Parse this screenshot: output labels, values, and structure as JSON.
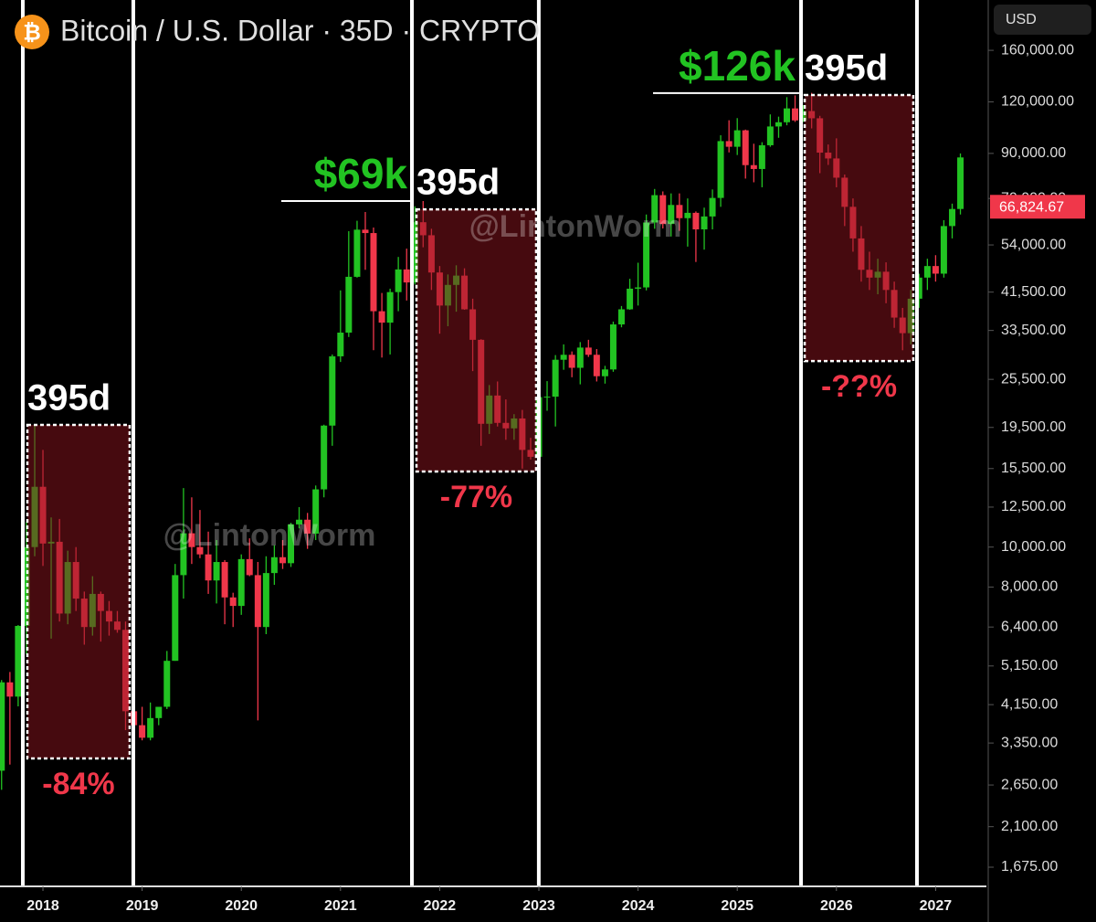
{
  "chart_data": {
    "type": "candlestick",
    "symbol_icon": "₿",
    "title": "Bitcoin / U.S. Dollar · 35D · CRYPTO",
    "currency": "USD",
    "log_scale": true,
    "grid": false,
    "up_color": "#22c322",
    "down_color": "#f0374a",
    "xlim": [
      2017.567,
      2027.512
    ],
    "xticks": [
      2018,
      2019,
      2020,
      2021,
      2022,
      2023,
      2024,
      2025,
      2026,
      2027
    ],
    "ylim": [
      1505,
      211900
    ],
    "yticks": [
      {
        "value": 160000,
        "label": "160,000.00"
      },
      {
        "value": 120000,
        "label": "120,000.00"
      },
      {
        "value": 90000,
        "label": "90,000.00"
      },
      {
        "value": 70000,
        "label": "70,000.00"
      },
      {
        "value": 54000,
        "label": "54,000.00"
      },
      {
        "value": 41500,
        "label": "41,500.00"
      },
      {
        "value": 33500,
        "label": "33,500.00"
      },
      {
        "value": 25500,
        "label": "25,500.00"
      },
      {
        "value": 19500,
        "label": "19,500.00"
      },
      {
        "value": 15500,
        "label": "15,500.00"
      },
      {
        "value": 12500,
        "label": "12,500.00"
      },
      {
        "value": 10000,
        "label": "10,000.00"
      },
      {
        "value": 8000,
        "label": "8,000.00"
      },
      {
        "value": 6400,
        "label": "6,400.00"
      },
      {
        "value": 5150,
        "label": "5,150.00"
      },
      {
        "value": 4150,
        "label": "4,150.00"
      },
      {
        "value": 3350,
        "label": "3,350.00"
      },
      {
        "value": 2650,
        "label": "2,650.00"
      },
      {
        "value": 2100,
        "label": "2,100.00"
      },
      {
        "value": 1675,
        "label": "1,675.00"
      }
    ],
    "last_price": {
      "value": 66824.67,
      "label": "66,824.67"
    },
    "x": [
      2017.583,
      2017.667,
      2017.75,
      2017.833,
      2017.917,
      2018,
      2018.083,
      2018.167,
      2018.25,
      2018.333,
      2018.417,
      2018.5,
      2018.583,
      2018.667,
      2018.75,
      2018.833,
      2018.917,
      2019,
      2019.083,
      2019.167,
      2019.25,
      2019.333,
      2019.417,
      2019.5,
      2019.583,
      2019.667,
      2019.75,
      2019.833,
      2019.917,
      2020,
      2020.083,
      2020.167,
      2020.25,
      2020.333,
      2020.417,
      2020.5,
      2020.583,
      2020.667,
      2020.75,
      2020.833,
      2020.917,
      2021,
      2021.083,
      2021.167,
      2021.25,
      2021.333,
      2021.417,
      2021.5,
      2021.583,
      2021.667,
      2021.75,
      2021.833,
      2021.917,
      2022,
      2022.083,
      2022.167,
      2022.25,
      2022.333,
      2022.417,
      2022.5,
      2022.583,
      2022.667,
      2022.75,
      2022.833,
      2022.917,
      2023,
      2023.083,
      2023.167,
      2023.25,
      2023.333,
      2023.417,
      2023.5,
      2023.583,
      2023.667,
      2023.75,
      2023.833,
      2023.917,
      2024,
      2024.083,
      2024.167,
      2024.25,
      2024.333,
      2024.417,
      2024.5,
      2024.583,
      2024.667,
      2024.75,
      2024.833,
      2024.917,
      2025,
      2025.083,
      2025.167,
      2025.25,
      2025.333,
      2025.417,
      2025.5,
      2025.583,
      2025.667,
      2025.75,
      2025.833,
      2025.917,
      2026,
      2026.083,
      2026.167,
      2026.25,
      2026.333,
      2026.417,
      2026.5,
      2026.583,
      2026.667,
      2026.75,
      2026.833,
      2026.917,
      2027,
      2027.083,
      2027.167,
      2027.25
    ],
    "open": [
      2870,
      4700,
      4340,
      6440,
      10000,
      14000,
      10200,
      10300,
      6900,
      9200,
      7500,
      6400,
      7700,
      7000,
      6600,
      6300,
      4000,
      3700,
      3450,
      3850,
      4100,
      5300,
      8550,
      10800,
      10000,
      9600,
      8300,
      9200,
      7550,
      7200,
      9350,
      8550,
      6400,
      8650,
      9450,
      9140,
      11350,
      11650,
      10780,
      13800,
      19700,
      29000,
      33100,
      45200,
      58800,
      57700,
      37300,
      35000,
      41500,
      47100,
      43800,
      61300,
      57000,
      46300,
      38500,
      43200,
      45500,
      37700,
      31800,
      19900,
      23300,
      20000,
      19400,
      20500,
      17200,
      16550,
      23100,
      23150,
      28450,
      29250,
      27200,
      30450,
      29250,
      25950,
      26950,
      34650,
      37700,
      42300,
      42600,
      61200,
      71300,
      60700,
      67500,
      62700,
      64600,
      58900,
      63300,
      70200,
      96400,
      93400,
      102400,
      84300,
      82500,
      94200,
      104600,
      107100,
      115700,
      108200,
      114000,
      109500,
      90400,
      87500,
      78600,
      66800,
      56000,
      47000,
      45000,
      46500,
      42000,
      36000,
      33000,
      40000,
      45000,
      48000,
      46000,
      60000,
      66000
    ],
    "high": [
      4760,
      4980,
      6470,
      11500,
      19700,
      17200,
      11800,
      11700,
      9800,
      10000,
      7800,
      8500,
      7800,
      7400,
      7000,
      6600,
      4300,
      4100,
      4200,
      4100,
      5600,
      9100,
      13900,
      13200,
      12300,
      10900,
      10400,
      9300,
      7750,
      9600,
      10500,
      9200,
      9500,
      10100,
      10400,
      11450,
      12500,
      12100,
      14100,
      19800,
      29300,
      41900,
      58300,
      61800,
      64900,
      59500,
      41300,
      42300,
      50500,
      52900,
      67000,
      69000,
      59100,
      48000,
      45800,
      48200,
      47400,
      40000,
      31900,
      24700,
      25200,
      22800,
      21000,
      21500,
      18400,
      23900,
      25250,
      29200,
      31000,
      29800,
      31400,
      31800,
      30200,
      27500,
      35200,
      38400,
      44700,
      48900,
      64000,
      73800,
      72800,
      72000,
      72000,
      70000,
      65100,
      66500,
      73600,
      99600,
      108300,
      109600,
      102800,
      95000,
      95800,
      111900,
      110500,
      123200,
      124400,
      117900,
      126200,
      111000,
      94600,
      97900,
      80000,
      70000,
      60000,
      52000,
      50000,
      49000,
      44000,
      38000,
      42000,
      46000,
      50000,
      51000,
      62000,
      68000,
      90000
    ],
    "low": [
      2580,
      2970,
      4110,
      5500,
      9500,
      9000,
      6000,
      6600,
      6500,
      7000,
      5800,
      6100,
      5900,
      6100,
      6200,
      3600,
      3150,
      3400,
      3400,
      3700,
      4050,
      5300,
      7500,
      9100,
      9400,
      7700,
      7300,
      6500,
      6400,
      6850,
      8500,
      3800,
      6150,
      8100,
      8850,
      8950,
      11100,
      9900,
      10400,
      13200,
      17600,
      28100,
      32300,
      45000,
      47000,
      30000,
      28800,
      29300,
      37300,
      39600,
      43300,
      53300,
      42000,
      32900,
      34300,
      37200,
      37600,
      26700,
      17600,
      18800,
      19600,
      18200,
      18200,
      15500,
      16300,
      16500,
      21400,
      19600,
      26900,
      25800,
      24800,
      28900,
      25200,
      24900,
      26600,
      34100,
      37600,
      38500,
      41900,
      59100,
      59200,
      56600,
      58400,
      53500,
      49100,
      52600,
      58900,
      66800,
      90500,
      89200,
      78200,
      76600,
      74500,
      93400,
      98200,
      105300,
      107300,
      107300,
      103500,
      80600,
      84400,
      74500,
      60000,
      52000,
      44000,
      42000,
      41000,
      39000,
      34000,
      30000,
      31000,
      38000,
      42000,
      44000,
      45000,
      56000,
      64000
    ],
    "close": [
      4700,
      4340,
      6440,
      10000,
      14000,
      10200,
      10300,
      6900,
      9200,
      7500,
      6400,
      7700,
      7000,
      6600,
      6300,
      4000,
      3700,
      3450,
      3850,
      4100,
      5300,
      8550,
      10800,
      10000,
      9600,
      8300,
      9200,
      7550,
      7200,
      9350,
      8550,
      6400,
      8650,
      9450,
      9140,
      11350,
      11650,
      10780,
      13800,
      19700,
      29000,
      33100,
      45200,
      58800,
      57700,
      37300,
      35000,
      41500,
      47100,
      43800,
      61300,
      57000,
      46300,
      38500,
      43200,
      45500,
      37700,
      31800,
      19900,
      23300,
      20000,
      19400,
      20500,
      17200,
      16550,
      23100,
      23150,
      28450,
      29250,
      27200,
      30450,
      29250,
      25950,
      26950,
      34650,
      37700,
      42300,
      42600,
      61200,
      71300,
      60700,
      67500,
      62700,
      64600,
      58900,
      63300,
      70200,
      96400,
      93400,
      102400,
      84300,
      82500,
      94200,
      104600,
      107100,
      115700,
      108200,
      114000,
      109500,
      90400,
      87500,
      78600,
      66800,
      56000,
      47000,
      45000,
      46500,
      42000,
      36000,
      33000,
      40000,
      45000,
      48000,
      46000,
      60000,
      66000,
      88000
    ],
    "cycle_lines": [
      2017.797,
      2018.911,
      2021.72,
      2022.999,
      2025.643,
      2026.812
    ],
    "boxes": [
      {
        "x": [
          2017.843,
          2018.874
        ],
        "y": [
          19780,
          3073
        ],
        "duration_label": "395d",
        "change_label": "-84%"
      },
      {
        "x": [
          2021.766,
          2022.972
        ],
        "y": [
          65870,
          15250
        ],
        "duration_label": "395d",
        "change_label": "-77%"
      },
      {
        "x": [
          2025.68,
          2026.775
        ],
        "y": [
          124700,
          28250
        ],
        "duration_label": "395d",
        "change_label": "-??%"
      }
    ],
    "peaks": [
      {
        "label": "$69k",
        "x": [
          2020.403,
          2021.711
        ],
        "price": 69000
      },
      {
        "label": "$126k",
        "x": [
          2024.151,
          2025.624
        ],
        "price": 126000
      }
    ],
    "watermark": "@LintonWorm"
  }
}
